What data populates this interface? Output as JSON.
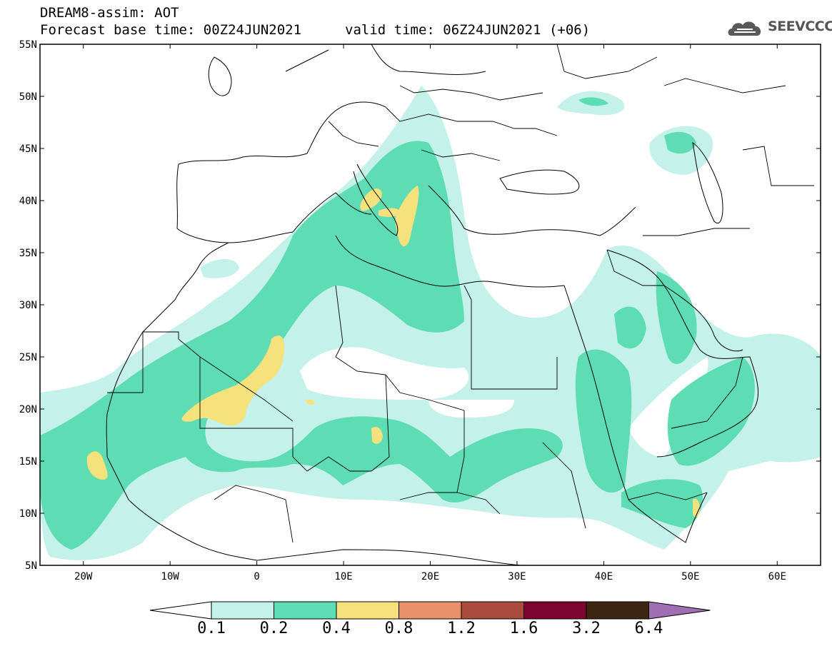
{
  "header": {
    "line1": "DREAM8-assim: AOT",
    "line2": "Forecast base time: 00Z24JUN2021",
    "valid": "valid time: 06Z24JUN2021 (+06)"
  },
  "logo": {
    "text": "SEEVCCC",
    "icon": "cloud-logo-icon"
  },
  "map": {
    "lon_range": [
      -25,
      65
    ],
    "lat_range": [
      5,
      55
    ],
    "lat_ticks": [
      "55N",
      "50N",
      "45N",
      "40N",
      "35N",
      "30N",
      "25N",
      "20N",
      "15N",
      "10N",
      "5N"
    ],
    "lon_ticks": [
      "20W",
      "10W",
      "0",
      "10E",
      "20E",
      "30E",
      "40E",
      "50E",
      "60E"
    ]
  },
  "colorbar": {
    "labels": [
      "0.1",
      "0.2",
      "0.4",
      "0.8",
      "1.2",
      "1.6",
      "3.2",
      "6.4"
    ],
    "colors": [
      "#ffffff",
      "#c4f1ea",
      "#5edcb4",
      "#f5e27c",
      "#e9916b",
      "#ab4b3d",
      "#7c0530",
      "#3d2512",
      "#9e6fb3"
    ]
  },
  "colors": {
    "aot_0_1": "#c4f1ea",
    "aot_0_2": "#5edcb4",
    "aot_0_4": "#f5e27c"
  }
}
